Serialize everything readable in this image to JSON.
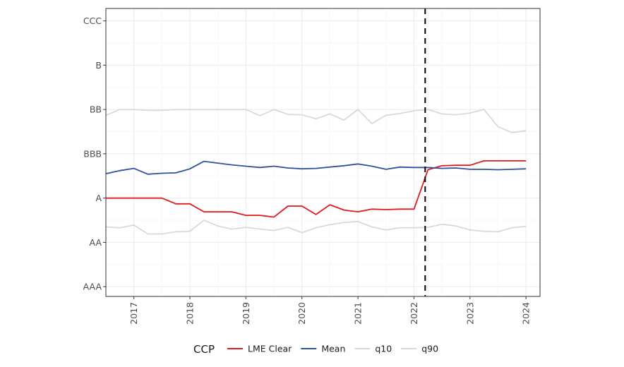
{
  "chart_data": {
    "type": "line",
    "title": "",
    "xlabel": "",
    "ylabel": "",
    "x_ticks": [
      "2017",
      "2018",
      "2019",
      "2020",
      "2021",
      "2022",
      "2023",
      "2024"
    ],
    "x_range": [
      2016.5,
      2024.25
    ],
    "y_categories": [
      "AAA",
      "AA",
      "A",
      "BBB",
      "BB",
      "B",
      "CCC"
    ],
    "y_range": [
      0.78,
      7.28
    ],
    "grid": true,
    "legend": {
      "title": "CCP",
      "position": "bottom"
    },
    "vline": {
      "x": 2022.2,
      "style": "dashed",
      "color": "#000000"
    },
    "x": [
      2016.5,
      2016.75,
      2017.0,
      2017.25,
      2017.5,
      2017.75,
      2018.0,
      2018.25,
      2018.5,
      2018.75,
      2019.0,
      2019.25,
      2019.5,
      2019.75,
      2020.0,
      2020.25,
      2020.5,
      2020.75,
      2021.0,
      2021.25,
      2021.5,
      2021.75,
      2022.0,
      2022.25,
      2022.5,
      2022.75,
      2023.0,
      2023.25,
      2023.5,
      2023.75,
      2024.0
    ],
    "series": [
      {
        "name": "LME Clear",
        "color": "#e31a1c",
        "values": [
          3.0,
          3.0,
          3.0,
          3.0,
          3.0,
          2.87,
          2.87,
          2.69,
          2.69,
          2.69,
          2.61,
          2.61,
          2.57,
          2.82,
          2.82,
          2.63,
          2.85,
          2.73,
          2.69,
          2.75,
          2.74,
          2.75,
          2.75,
          3.64,
          3.73,
          3.74,
          3.74,
          3.84,
          3.84,
          3.84,
          3.84
        ]
      },
      {
        "name": "Mean",
        "color": "#3050a0",
        "values": [
          3.55,
          3.62,
          3.67,
          3.54,
          3.56,
          3.57,
          3.66,
          3.83,
          3.79,
          3.75,
          3.72,
          3.69,
          3.72,
          3.68,
          3.66,
          3.67,
          3.7,
          3.73,
          3.77,
          3.72,
          3.65,
          3.7,
          3.69,
          3.69,
          3.67,
          3.68,
          3.65,
          3.65,
          3.64,
          3.65,
          3.66
        ]
      },
      {
        "name": "q10",
        "color": "#d9d9d9",
        "values": [
          2.35,
          2.33,
          2.39,
          2.19,
          2.19,
          2.24,
          2.25,
          2.5,
          2.37,
          2.3,
          2.34,
          2.3,
          2.27,
          2.34,
          2.22,
          2.33,
          2.4,
          2.45,
          2.47,
          2.35,
          2.28,
          2.33,
          2.33,
          2.34,
          2.41,
          2.37,
          2.28,
          2.25,
          2.24,
          2.33,
          2.36
        ]
      },
      {
        "name": "q90",
        "color": "#d9d9d9",
        "values": [
          4.87,
          5.0,
          5.0,
          4.98,
          4.98,
          5.0,
          5.0,
          5.0,
          5.0,
          5.0,
          5.0,
          4.86,
          5.0,
          4.89,
          4.88,
          4.79,
          4.9,
          4.76,
          5.0,
          4.68,
          4.87,
          4.91,
          4.97,
          5.0,
          4.9,
          4.88,
          4.92,
          5.0,
          4.61,
          4.48,
          4.52
        ]
      }
    ]
  }
}
